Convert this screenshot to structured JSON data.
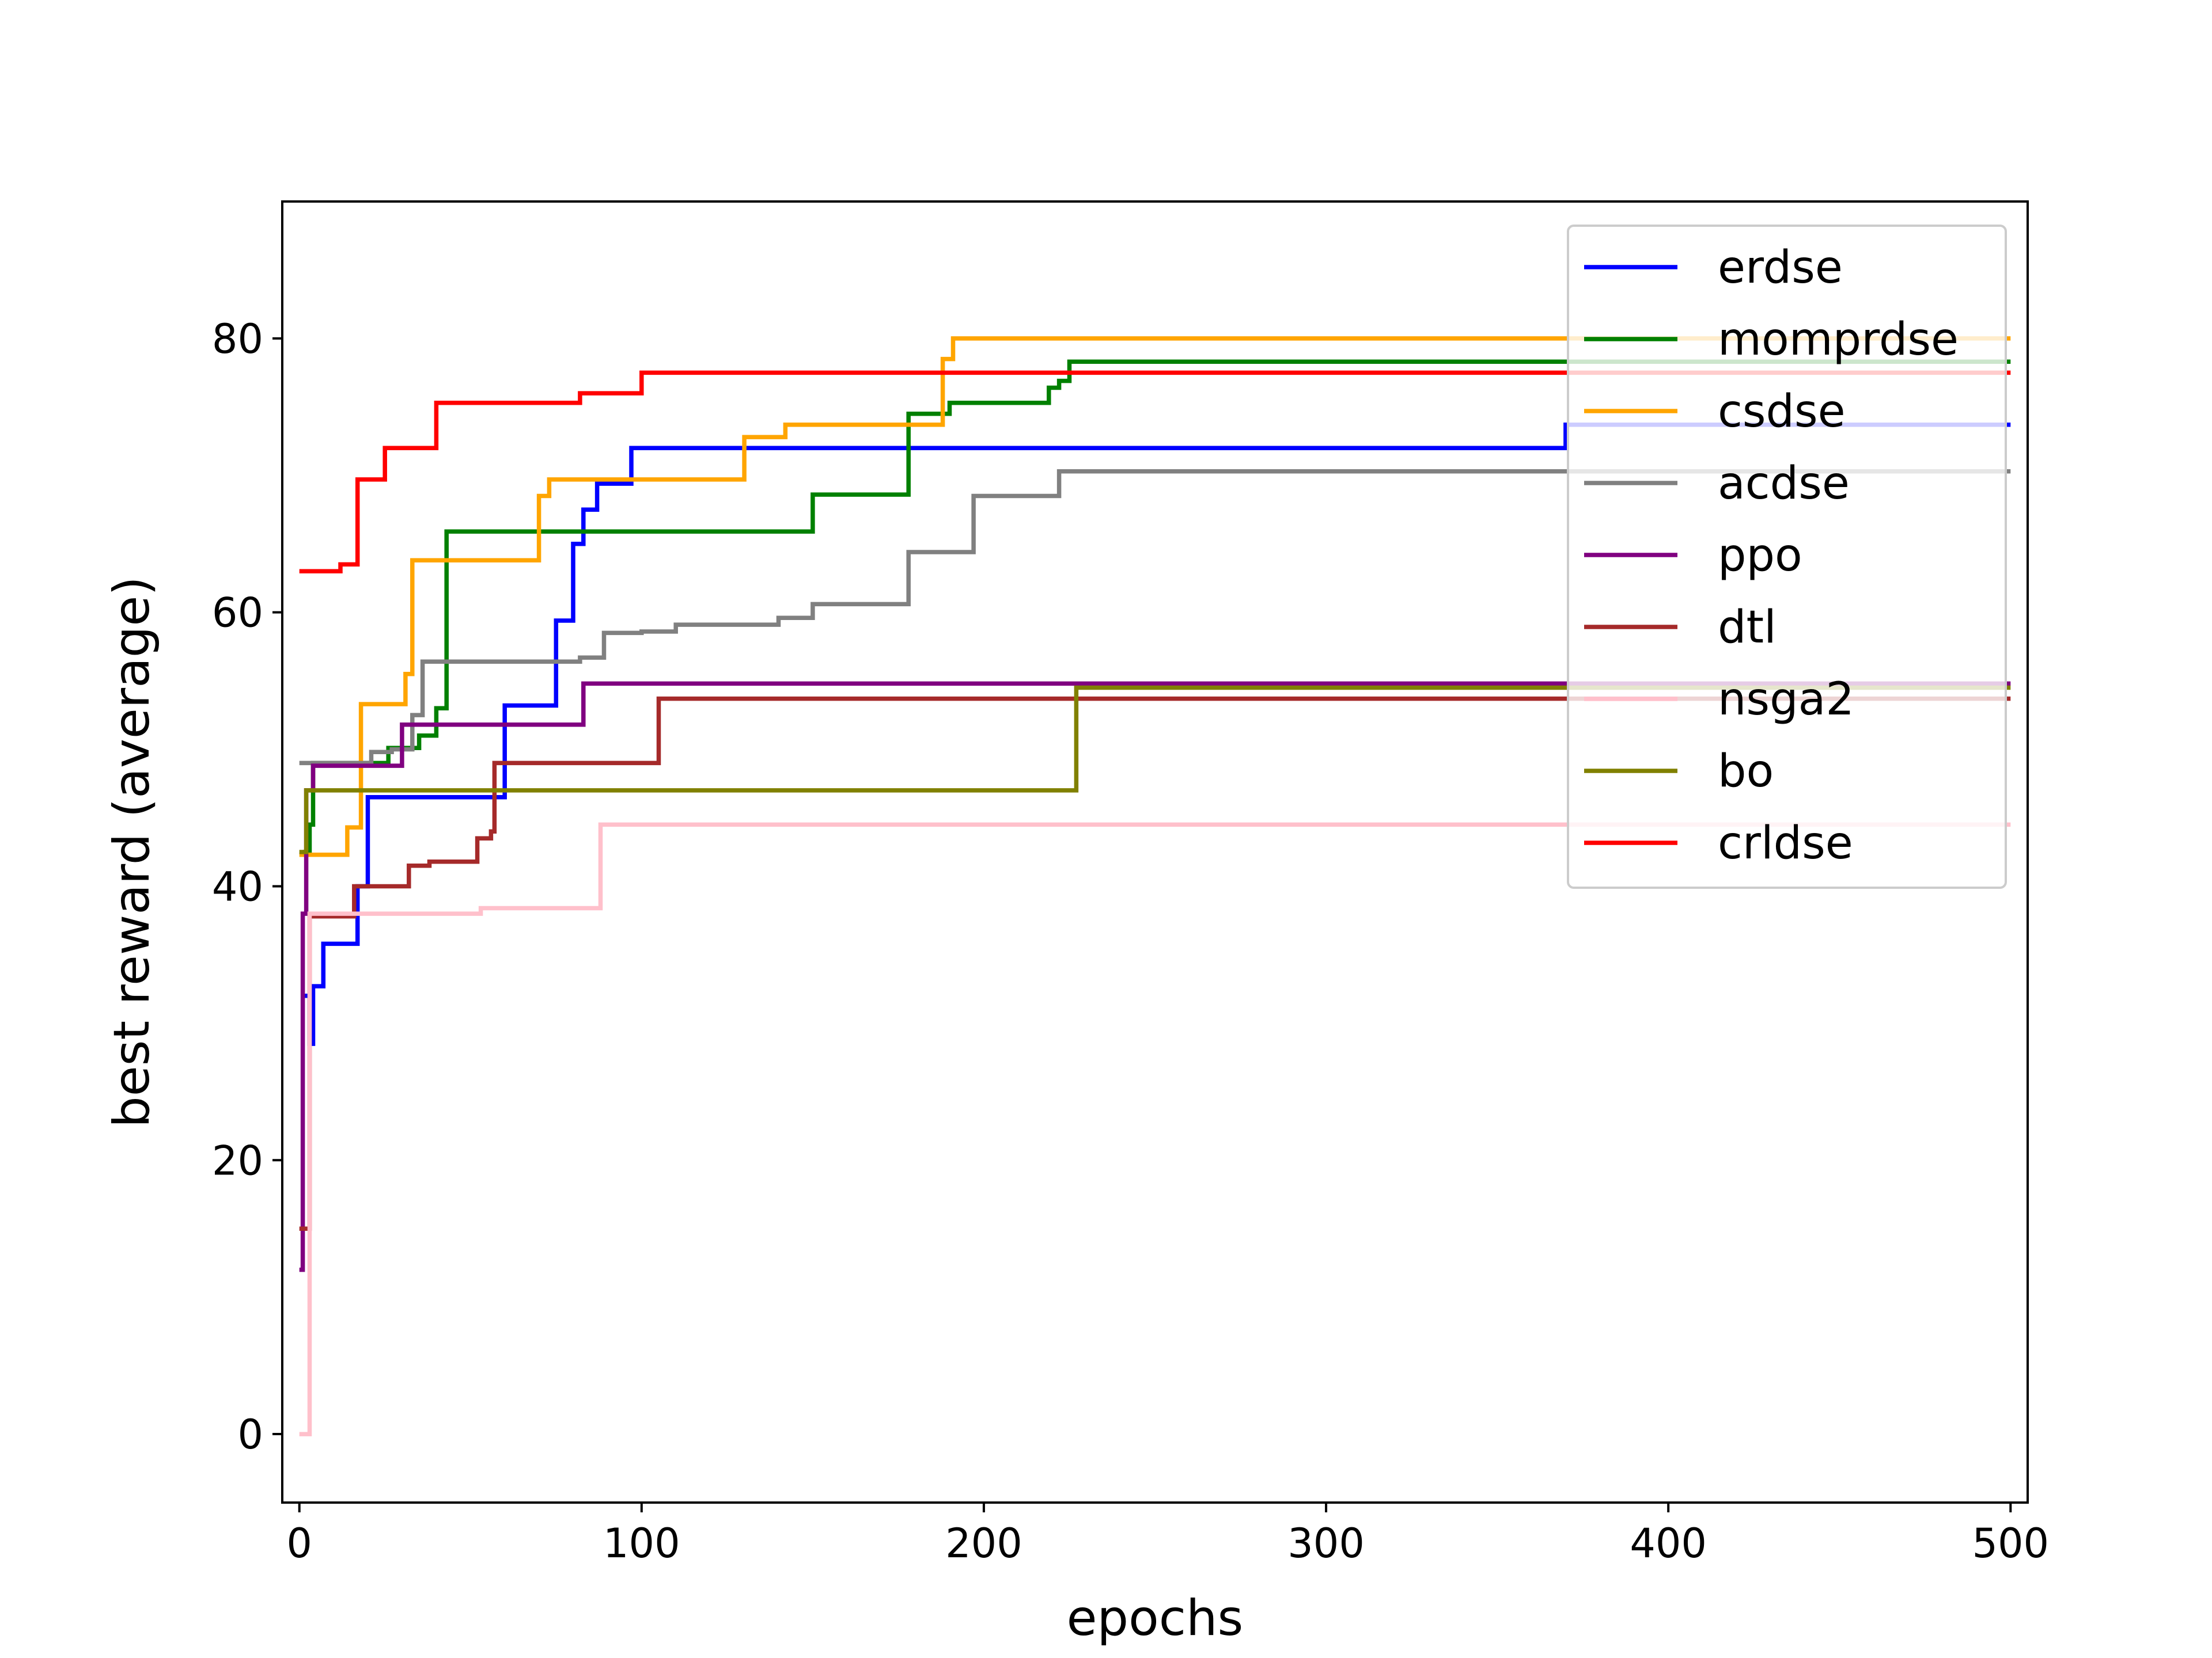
{
  "chart_data": {
    "type": "line",
    "title": "",
    "xlabel": "epochs",
    "ylabel": "best reward (average)",
    "xlim": [
      -5,
      505
    ],
    "ylim": [
      -5,
      90
    ],
    "xticks": [
      0,
      100,
      200,
      300,
      400,
      500
    ],
    "yticks": [
      0,
      20,
      40,
      60,
      80
    ],
    "grid": false,
    "legend": "top-right",
    "series": [
      {
        "name": "erdse",
        "color": "#0000ff",
        "step": true,
        "x": [
          1,
          3,
          4,
          7,
          10,
          17,
          20,
          60,
          75,
          80,
          83,
          87,
          97,
          102,
          368,
          370,
          500
        ],
        "y": [
          32,
          28.5,
          32.7,
          35.8,
          35.8,
          40,
          46.5,
          53.2,
          59.4,
          65,
          67.5,
          69.4,
          72,
          72,
          72,
          73.7,
          73.7
        ]
      },
      {
        "name": "momprdse",
        "color": "#008000",
        "step": true,
        "x": [
          1,
          3,
          4,
          26,
          35,
          40,
          43,
          150,
          178,
          190,
          219,
          222,
          225,
          500
        ],
        "y": [
          42.5,
          44.5,
          49,
          50.1,
          51,
          53,
          65.9,
          68.6,
          74.5,
          75.3,
          76.4,
          76.9,
          78.3,
          78.3
        ]
      },
      {
        "name": "csdse",
        "color": "#ffa500",
        "step": true,
        "x": [
          0,
          14,
          18,
          31,
          33,
          70,
          73,
          75,
          130,
          142,
          188,
          191,
          500
        ],
        "y": [
          42.3,
          44.3,
          53.3,
          55.5,
          63.8,
          68.5,
          69.7,
          69.7,
          72.8,
          73.7,
          78.5,
          80,
          80
        ]
      },
      {
        "name": "acdse",
        "color": "#808080",
        "step": true,
        "x": [
          0,
          21,
          27,
          33,
          36,
          82,
          89,
          100,
          110,
          140,
          150,
          178,
          197,
          220,
          222,
          500
        ],
        "y": [
          49,
          49.8,
          50,
          52.5,
          56.4,
          56.7,
          58.5,
          58.6,
          59.1,
          59.6,
          60.6,
          64.4,
          68.5,
          68.5,
          70.3,
          70.3
        ]
      },
      {
        "name": "ppo",
        "color": "#800080",
        "step": true,
        "x": [
          0,
          1,
          2,
          4,
          30,
          83,
          500
        ],
        "y": [
          12,
          38,
          47,
          48.8,
          51.8,
          54.8,
          54.8
        ]
      },
      {
        "name": "dtl",
        "color": "#a52a2a",
        "step": true,
        "x": [
          0,
          3,
          16,
          32,
          38,
          52,
          56,
          57,
          105,
          500
        ],
        "y": [
          15,
          37.8,
          40,
          41.5,
          41.8,
          43.5,
          44,
          49,
          53.7,
          53.7
        ]
      },
      {
        "name": "nsga2",
        "color": "#ffc0cb",
        "step": true,
        "x": [
          0,
          3,
          53,
          88,
          500
        ],
        "y": [
          0,
          38,
          38.4,
          44.5,
          44.5
        ]
      },
      {
        "name": "bo",
        "color": "#808000",
        "step": true,
        "x": [
          0,
          2,
          225,
          227,
          500
        ],
        "y": [
          42.5,
          47,
          47,
          54.5,
          54.5
        ]
      },
      {
        "name": "crldse",
        "color": "#ff0000",
        "step": true,
        "x": [
          0,
          12,
          17,
          25,
          40,
          82,
          100,
          500
        ],
        "y": [
          63,
          63.5,
          69.7,
          72,
          75.3,
          76,
          77.5,
          77.5
        ]
      }
    ]
  }
}
